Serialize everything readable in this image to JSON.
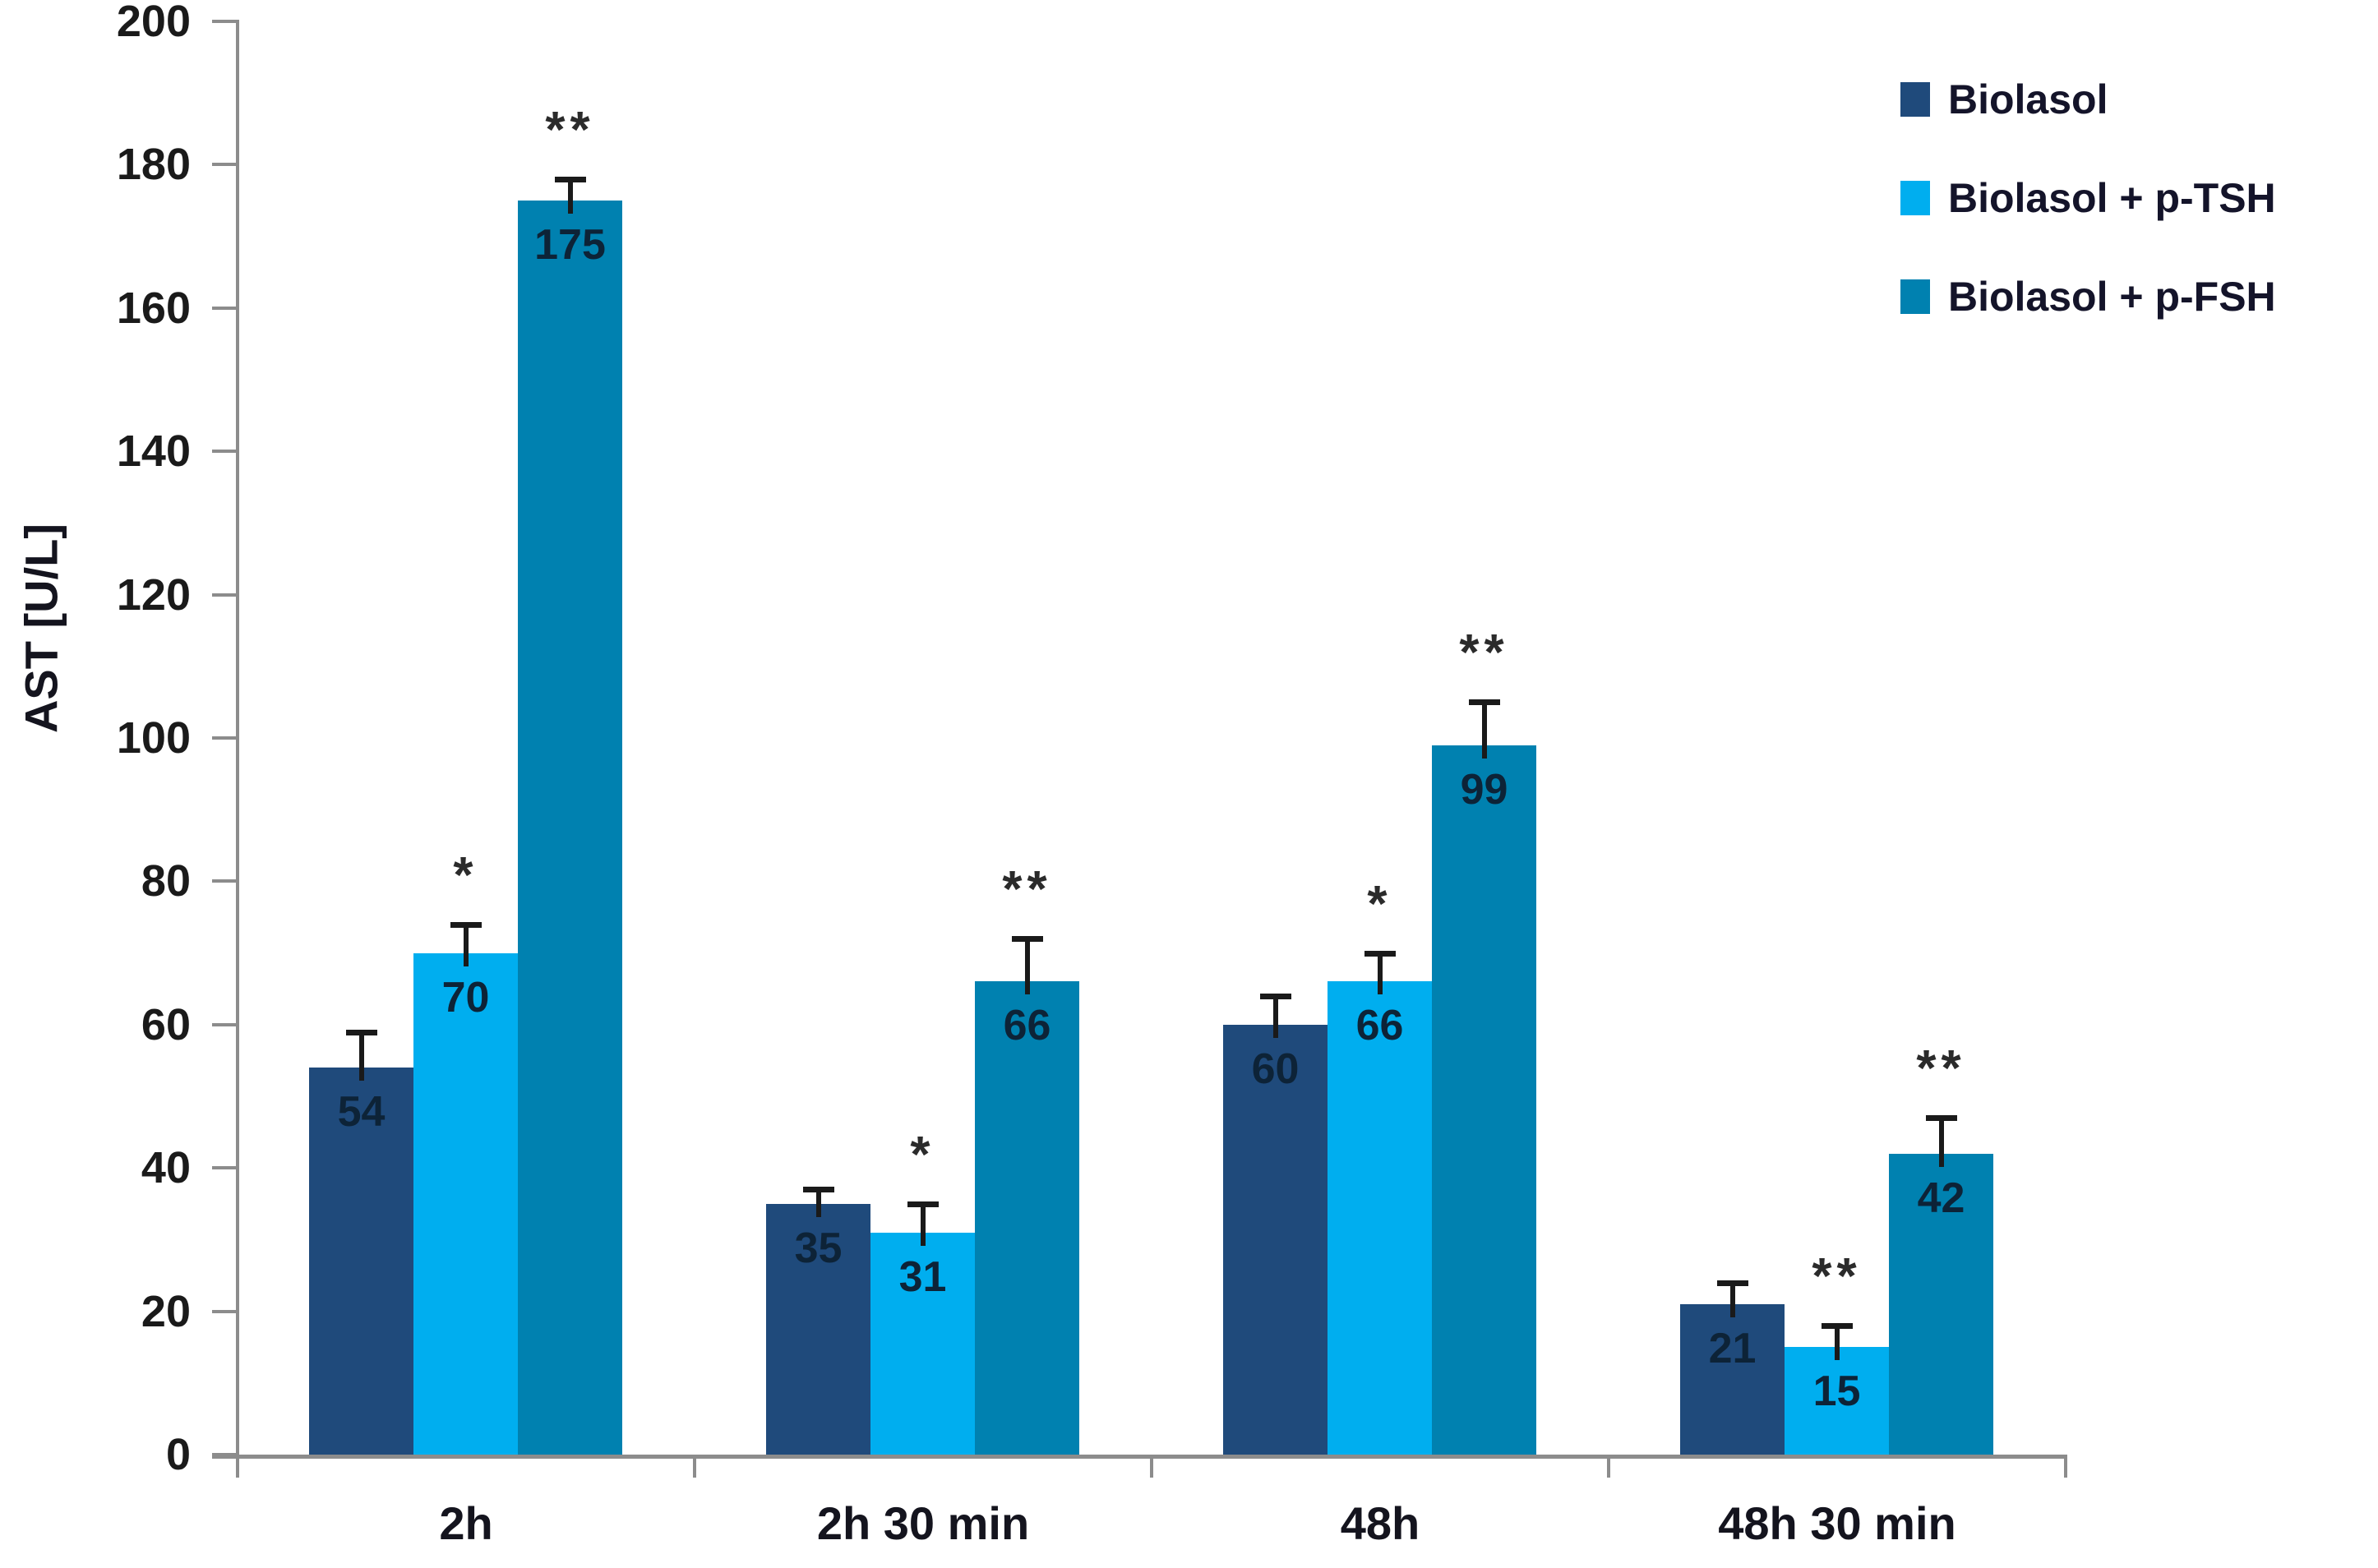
{
  "chart_data": {
    "type": "bar",
    "title": "",
    "xlabel": "",
    "ylabel": "AST [U/L]",
    "ylim": [
      0,
      200
    ],
    "ytick_step": 20,
    "grid": false,
    "legend_position": "top-right",
    "categories": [
      "2h",
      "2h 30 min",
      "48h",
      "48h 30 min"
    ],
    "series": [
      {
        "name": "Biolasol",
        "color": "#1F4A7B",
        "values": [
          54,
          35,
          60,
          21
        ],
        "errors": [
          5,
          2,
          4,
          3
        ],
        "significance": [
          "",
          "",
          "",
          ""
        ]
      },
      {
        "name": "Biolasol + p-TSH",
        "color": "#00AEEF",
        "values": [
          70,
          31,
          66,
          15
        ],
        "errors": [
          4,
          4,
          4,
          3
        ],
        "significance": [
          "*",
          "*",
          "*",
          "**"
        ]
      },
      {
        "name": "Biolasol + p-FSH",
        "color": "#0081B0",
        "values": [
          175,
          66,
          99,
          42
        ],
        "errors": [
          3,
          6,
          6,
          5
        ],
        "significance": [
          "**",
          "**",
          "**",
          "**"
        ]
      }
    ],
    "colors": {
      "axis": "#8C8C8C",
      "error_bar": "#1A1A1A",
      "bar_value_label": "#0D2337",
      "tick_label": "#1A1A1A",
      "category_label": "#14141E",
      "legend_text": "#14142A",
      "significance_marker": "#2B2B2B",
      "background": "#FFFFFF"
    }
  }
}
